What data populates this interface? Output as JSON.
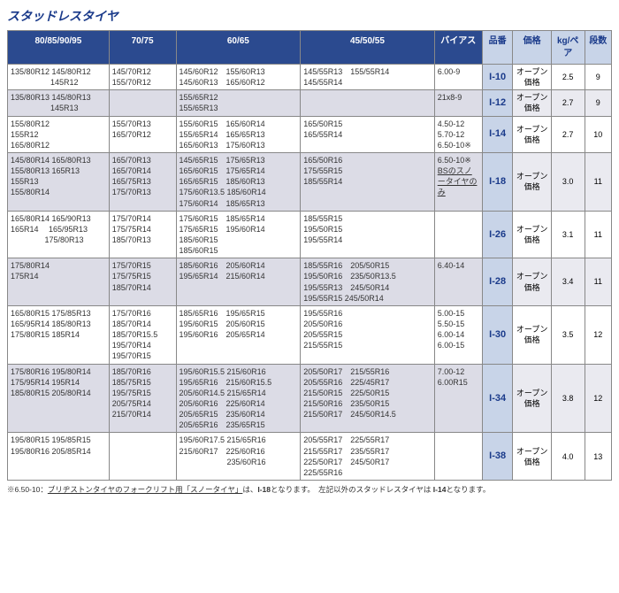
{
  "title": "スタッドレスタイヤ",
  "headers": {
    "c1": "80/85/90/95",
    "c2": "70/75",
    "c3": "60/65",
    "c4": "45/50/55",
    "c5": "バイアス",
    "c6": "品番",
    "c7": "価格",
    "c8": "kg/ペア",
    "c9": "段数"
  },
  "rows": [
    {
      "alt": false,
      "c1": "135/80R12 145/80R12\n　　　　　145R12",
      "c2": "145/70R12\n155/70R12",
      "c3": "145/60R12　155/60R13\n145/60R13　165/60R12",
      "c4": "145/55R13　155/55R14\n145/55R14",
      "c5": "6.00-9",
      "part": "I-10",
      "price": "オープン\n価格",
      "kg": "2.5",
      "levels": "9"
    },
    {
      "alt": true,
      "c1": "135/80R13 145/80R13\n　　　　　145R13",
      "c2": "",
      "c3": "155/65R12\n155/65R13",
      "c4": "",
      "c5": "21x8-9",
      "part": "I-12",
      "price": "オープン\n価格",
      "kg": "2.7",
      "levels": "9"
    },
    {
      "alt": false,
      "c1": "155/80R12\n155R12\n165/80R12",
      "c2": "155/70R13\n165/70R12",
      "c3": "155/60R15　165/60R14\n155/65R14　165/65R13\n165/60R13　175/60R13",
      "c4": "165/50R15\n165/55R14",
      "c5": "4.50-12\n5.70-12\n6.50-10※",
      "part": "I-14",
      "price": "オープン\n価格",
      "kg": "2.7",
      "levels": "10"
    },
    {
      "alt": true,
      "c1": "145/80R14 165/80R13\n155/80R13 165R13\n155R13\n155/80R14",
      "c2": "165/70R13\n165/70R14\n165/75R13\n175/70R13",
      "c3": "145/65R15　175/65R13\n165/60R15　175/65R14\n165/65R15　185/60R13\n175/60R13.5 185/60R14\n175/60R14　185/65R13",
      "c4": "165/50R16\n175/55R15\n185/55R14",
      "c5_html": "6.50-10※<br><span class='underline'>BSのスノータイヤのみ</span>",
      "c5": "",
      "part": "I-18",
      "price": "オープン\n価格",
      "kg": "3.0",
      "levels": "11"
    },
    {
      "alt": false,
      "c1": "165/80R14 165/90R13\n165R14　 165/95R13\n　　　　 175/80R13",
      "c2": "175/70R14\n175/75R14\n185/70R13",
      "c3": "175/60R15　185/65R14\n175/65R15　195/60R14\n185/60R15\n185/60R15",
      "c4": "185/55R15\n195/50R15\n195/55R14",
      "c5": "",
      "part": "I-26",
      "price": "オープン\n価格",
      "kg": "3.1",
      "levels": "11"
    },
    {
      "alt": true,
      "c1": "175/80R14\n175R14",
      "c2": "175/70R15\n175/75R15\n185/70R14",
      "c3": "185/60R16　205/60R14\n195/65R14　215/60R14",
      "c4": "185/55R16　205/50R15\n195/50R16　235/50R13.5\n195/55R13　245/50R14\n195/55R15 245/50R14",
      "c5": "6.40-14",
      "part": "I-28",
      "price": "オープン\n価格",
      "kg": "3.4",
      "levels": "11"
    },
    {
      "alt": false,
      "c1": "165/80R15 175/85R13\n165/95R14 185/80R13\n175/80R15 185R14",
      "c2": "175/70R16\n185/70R14\n185/70R15.5\n195/70R14\n195/70R15",
      "c3": "185/65R16　195/65R15\n195/60R15　205/60R15\n195/60R16　205/65R14",
      "c4": "195/55R16\n205/50R16\n205/55R15\n215/55R15",
      "c5": "5.00-15\n5.50-15\n6.00-14\n6.00-15",
      "part": "I-30",
      "price": "オープン\n価格",
      "kg": "3.5",
      "levels": "12"
    },
    {
      "alt": true,
      "c1": "175/80R16 195/80R14\n175/95R14 195R14\n185/80R15 205/80R14",
      "c2": "185/70R16\n185/75R15\n195/75R15\n205/75R14\n215/70R14",
      "c3": "195/60R15.5 215/60R16\n195/65R16　215/60R15.5\n205/60R14.5 215/65R14\n205/60R16　225/60R14\n205/65R15　235/60R14\n205/65R16　235/65R15",
      "c4": "205/50R17　215/55R16\n205/55R16　225/45R17\n215/50R15　225/50R15\n215/50R16　235/50R15\n215/50R17　245/50R14.5",
      "c5": "7.00-12\n6.00R15",
      "part": "I-34",
      "price": "オープン\n価格",
      "kg": "3.8",
      "levels": "12"
    },
    {
      "alt": false,
      "c1": "195/80R15 195/85R15\n195/80R16 205/85R14",
      "c2": "",
      "c3": "195/60R17.5 215/65R16\n215/60R17　225/60R16\n　　　　　　235/60R16",
      "c4": "205/55R17　225/55R17\n215/55R17　235/55R17\n225/50R17　245/50R17\n225/55R16",
      "c5": "",
      "part": "I-38",
      "price": "オープン\n価格",
      "kg": "4.0",
      "levels": "13"
    }
  ],
  "footnote_prefix": "※6.50-10：",
  "footnote_underline": "ブリヂストンタイヤのフォークリフト用「スノータイヤ」",
  "footnote_mid": "は、",
  "footnote_bold1": "I-18",
  "footnote_mid2": "となります。　左記以外のスタッドレスタイヤは ",
  "footnote_bold2": "I-14",
  "footnote_end": "となります。"
}
